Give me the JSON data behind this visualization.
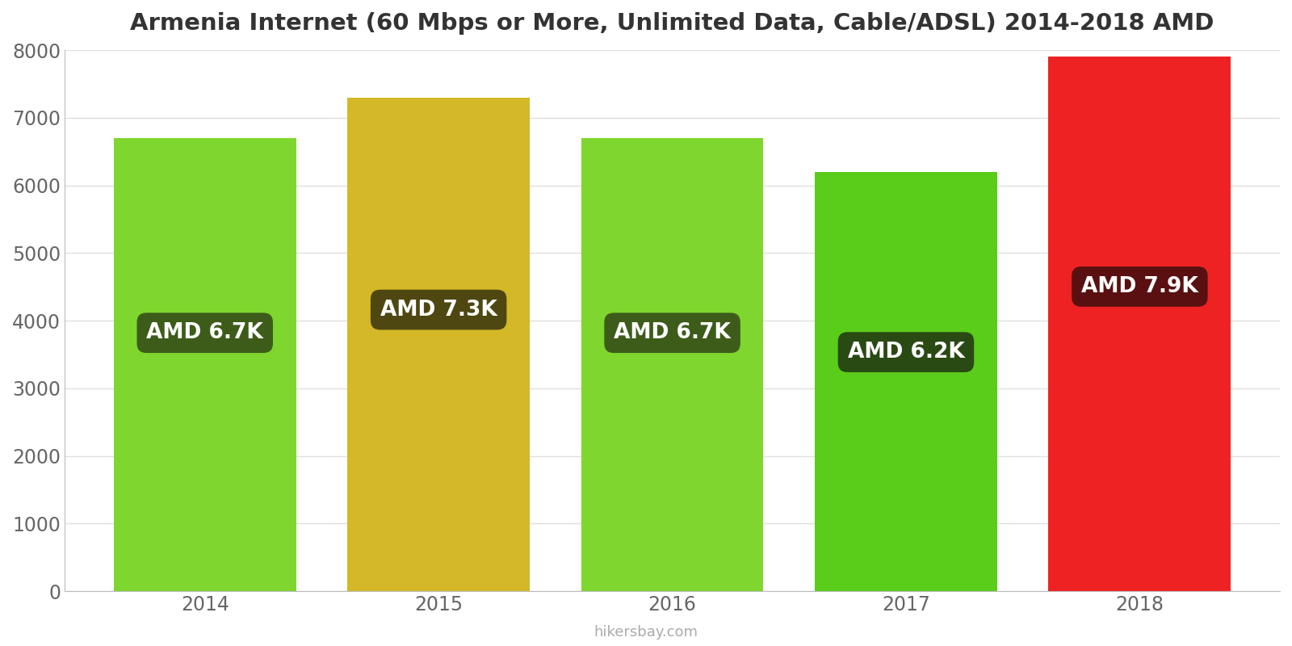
{
  "title": "Armenia Internet (60 Mbps or More, Unlimited Data, Cable/ADSL) 2014-2018 AMD",
  "years": [
    2014,
    2015,
    2016,
    2017,
    2018
  ],
  "values": [
    6700,
    7300,
    6700,
    6200,
    7900
  ],
  "labels": [
    "AMD 6.7K",
    "AMD 7.3K",
    "AMD 6.7K",
    "AMD 6.2K",
    "AMD 7.9K"
  ],
  "bar_colors": [
    "#7fd62e",
    "#d4b828",
    "#7fd62e",
    "#5acc1a",
    "#ee2222"
  ],
  "label_bg_colors": [
    "#3d5c1a",
    "#4f4712",
    "#3d5c1a",
    "#2a4a14",
    "#5a1010"
  ],
  "ylim": [
    0,
    8000
  ],
  "yticks": [
    0,
    1000,
    2000,
    3000,
    4000,
    5000,
    6000,
    7000,
    8000
  ],
  "title_fontsize": 21,
  "tick_fontsize": 17,
  "label_fontsize": 19,
  "watermark": "hikersbay.com",
  "background_color": "#ffffff",
  "grid_color": "#e0e0e0"
}
